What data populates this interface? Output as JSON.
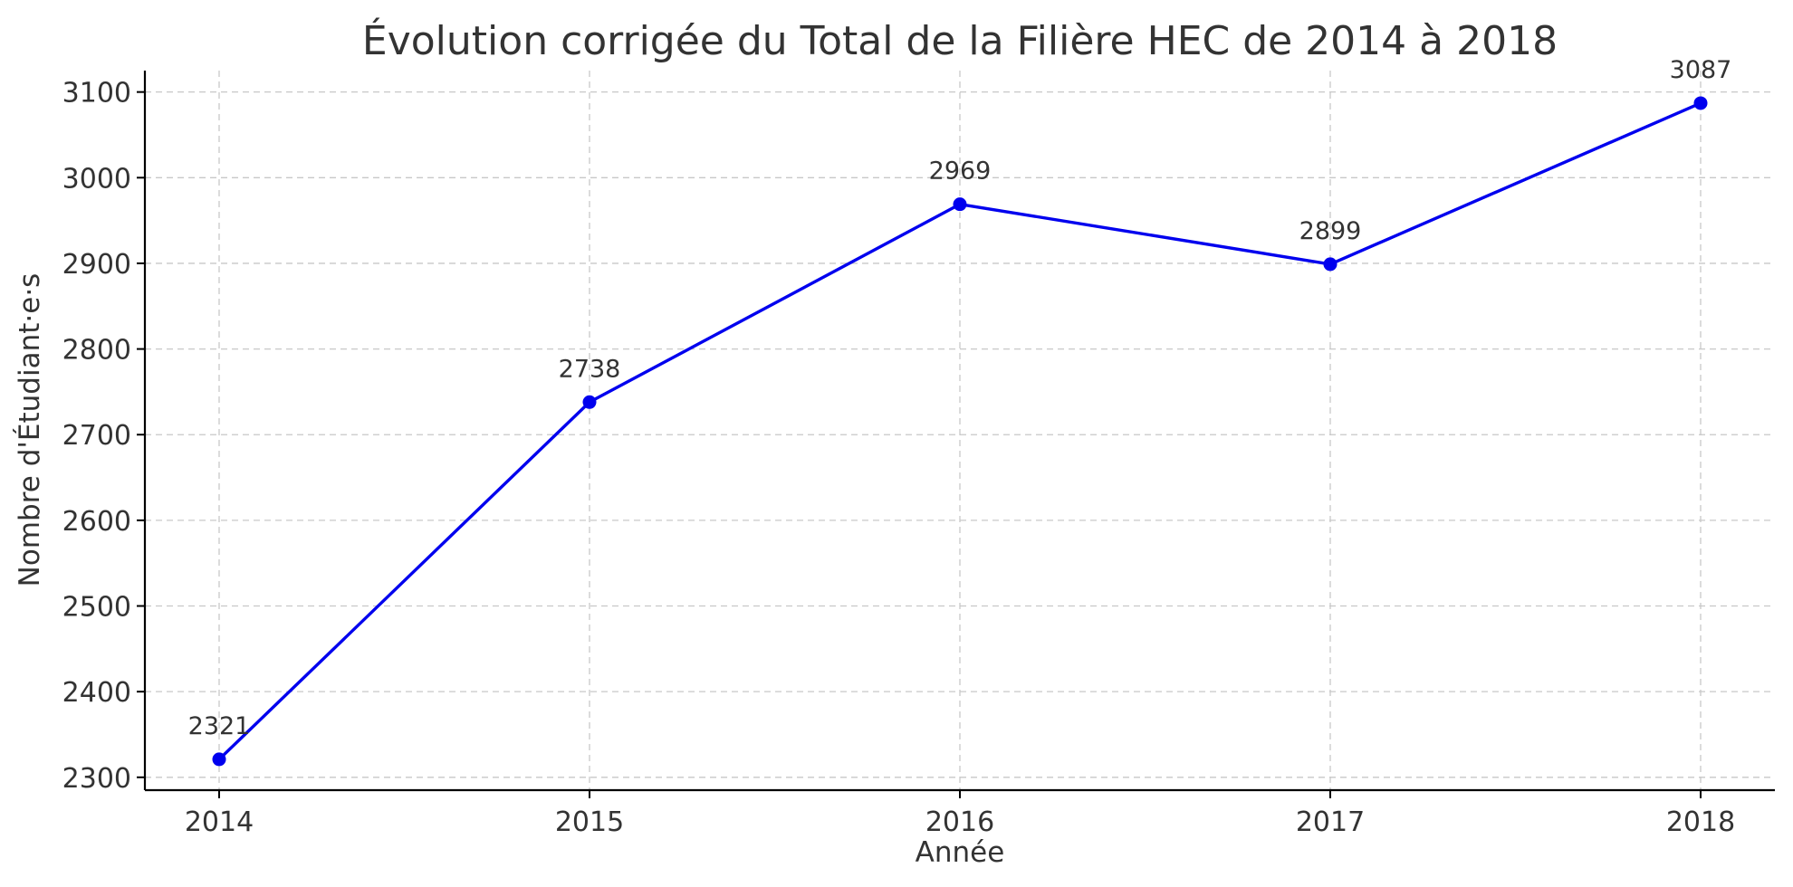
{
  "chart_data": {
    "type": "line",
    "title": "Évolution corrigée du Total de la Filière HEC de 2014 à 2018",
    "xlabel": "Année",
    "ylabel": "Nombre d'Étudiant·e·s",
    "categories": [
      "2014",
      "2015",
      "2016",
      "2017",
      "2018"
    ],
    "series": [
      {
        "values": [
          2321,
          2738,
          2969,
          2899,
          3087
        ],
        "color": "#0000ee"
      }
    ],
    "data_labels": [
      "2321",
      "2738",
      "2969",
      "2899",
      "3087"
    ],
    "y_ticks": [
      2300,
      2400,
      2500,
      2600,
      2700,
      2800,
      2900,
      3000,
      3100
    ],
    "ylim": [
      2285,
      3125
    ],
    "grid": true,
    "legend": "none"
  }
}
